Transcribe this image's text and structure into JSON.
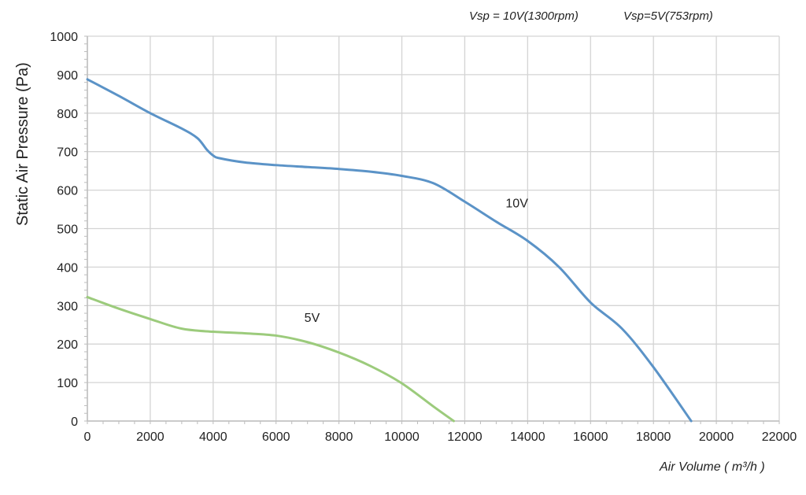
{
  "annotations": {
    "vsp10": "Vsp = 10V(1300rpm)",
    "vsp5": "Vsp=5V(753rpm)"
  },
  "chart_data": {
    "type": "line",
    "title": "",
    "xlabel": "Air Volume ( m³/h )",
    "ylabel": "Static Air Pressure  (Pa)",
    "xlim": [
      0,
      22000
    ],
    "ylim": [
      0,
      1000
    ],
    "xticks": [
      0,
      2000,
      4000,
      6000,
      8000,
      10000,
      12000,
      14000,
      16000,
      18000,
      20000,
      22000
    ],
    "yticks": [
      0,
      100,
      200,
      300,
      400,
      500,
      600,
      700,
      800,
      900,
      1000
    ],
    "grid": true,
    "legend": "none",
    "series": [
      {
        "name": "10V",
        "color": "#5b93c7",
        "x": [
          0,
          1000,
          2000,
          3000,
          3500,
          3800,
          4000,
          4200,
          5000,
          6000,
          7000,
          8000,
          9000,
          10000,
          11000,
          12000,
          13000,
          14000,
          15000,
          16000,
          17000,
          18000,
          19200
        ],
        "y": [
          888,
          845,
          800,
          760,
          735,
          705,
          690,
          683,
          672,
          665,
          660,
          655,
          648,
          637,
          618,
          570,
          518,
          468,
          400,
          308,
          240,
          140,
          0
        ]
      },
      {
        "name": "5V",
        "color": "#9ccb7c",
        "x": [
          0,
          1000,
          2000,
          3000,
          4000,
          5000,
          6000,
          7000,
          8000,
          9000,
          10000,
          11000,
          11650
        ],
        "y": [
          322,
          292,
          265,
          240,
          232,
          228,
          222,
          205,
          178,
          143,
          98,
          38,
          0
        ]
      }
    ],
    "series_labels": [
      {
        "text": "10V",
        "x": 13300,
        "y": 555
      },
      {
        "text": "5V",
        "x": 6900,
        "y": 258
      }
    ]
  }
}
